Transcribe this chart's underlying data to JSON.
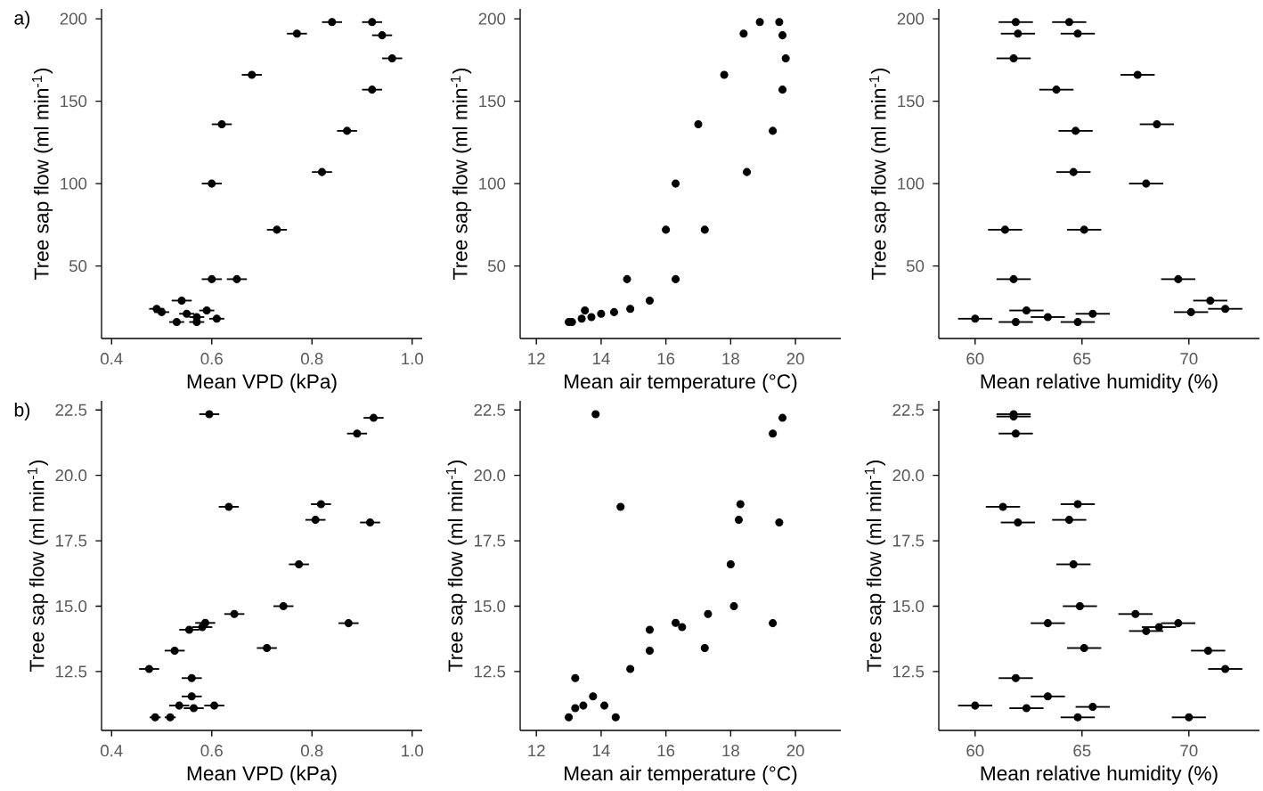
{
  "chart_data": [
    {
      "type": "scatter",
      "xlabel": "Mean VPD (kPa)",
      "ylabel": "Tree sap flow (ml min$^{-1}$)",
      "annotations": [
        "a)"
      ],
      "xlim": [
        0.38,
        1.02
      ],
      "ylim": [
        6,
        206
      ],
      "xticks": [
        {
          "value": 0.4,
          "label": "0.4"
        },
        {
          "value": 0.6,
          "label": "0.6"
        },
        {
          "value": 0.8,
          "label": "0.8"
        },
        {
          "value": 1,
          "label": "1.0"
        }
      ],
      "yticks": [
        50,
        100,
        150,
        200
      ],
      "series": [
        {
          "color": "#000000",
          "x": [
            0.84,
            0.92,
            0.77,
            0.94,
            0.96,
            0.68,
            0.92,
            0.62,
            0.87,
            0.82,
            0.6,
            0.73,
            0.6,
            0.65,
            0.54,
            0.49,
            0.5,
            0.53,
            0.55,
            0.57,
            0.59,
            0.57,
            0.61
          ],
          "values": [
            198,
            198,
            191,
            190,
            176,
            166,
            157,
            136,
            132,
            107,
            100,
            72,
            42,
            42,
            29,
            24,
            22,
            16,
            21,
            19,
            23,
            16,
            18
          ],
          "xerrors": [
            0.02,
            0.02,
            0.02,
            0.02,
            0.02,
            0.02,
            0.02,
            0.02,
            0.02,
            0.02,
            0.02,
            0.02,
            0.02,
            0.02,
            0.02,
            0.015,
            0.015,
            0.015,
            0.015,
            0.015,
            0.015,
            0.015,
            0.015
          ]
        }
      ]
    },
    {
      "type": "scatter",
      "xlabel": "Mean air temperature (°C)",
      "ylabel": "Tree sap flow (ml min$^{-1}$)",
      "xlim": [
        11.5,
        21.4
      ],
      "ylim": [
        6,
        206
      ],
      "xticks": [
        12,
        14,
        16,
        18,
        20
      ],
      "yticks": [
        50,
        100,
        150,
        200
      ],
      "series": [
        {
          "color": "#000000",
          "x": [
            18.9,
            19.5,
            18.4,
            19.6,
            19.7,
            17.8,
            19.6,
            17.0,
            19.3,
            18.5,
            16.3,
            16.0,
            17.2,
            14.8,
            16.3,
            15.5,
            14.9,
            14.4,
            14.0,
            13.7,
            13.5,
            13.4,
            13.0,
            13.1
          ],
          "values": [
            198,
            198,
            191,
            190,
            176,
            166,
            157,
            136,
            132,
            107,
            100,
            72,
            72,
            42,
            42,
            29,
            24,
            22,
            21,
            19,
            23,
            18,
            16,
            16
          ]
        }
      ]
    },
    {
      "type": "scatter",
      "xlabel": "Mean relative humidity (%)",
      "ylabel": "Tree sap flow (ml min$^{-1}$)",
      "xlim": [
        58.3,
        73.3
      ],
      "ylim": [
        6,
        206
      ],
      "xticks": [
        60,
        65,
        70
      ],
      "yticks": [
        50,
        100,
        150,
        200
      ],
      "series": [
        {
          "color": "#000000",
          "x": [
            61.9,
            64.4,
            62.0,
            64.8,
            61.8,
            67.6,
            63.8,
            68.5,
            64.7,
            64.6,
            68.0,
            61.4,
            65.1,
            61.8,
            69.5,
            71.0,
            71.7,
            70.1,
            62.4,
            63.4,
            65.5,
            60.0,
            61.9,
            64.8
          ],
          "values": [
            198,
            198,
            191,
            191,
            176,
            166,
            157,
            136,
            132,
            107,
            100,
            72,
            72,
            42,
            42,
            29,
            24,
            22,
            23,
            19,
            21,
            18,
            16,
            16
          ],
          "xerrors": [
            0.8,
            0.8,
            0.8,
            0.8,
            0.8,
            0.8,
            0.8,
            0.8,
            0.8,
            0.8,
            0.8,
            0.8,
            0.8,
            0.8,
            0.8,
            0.8,
            0.8,
            0.8,
            0.8,
            0.8,
            0.8,
            0.8,
            0.8,
            0.8
          ]
        }
      ]
    },
    {
      "type": "scatter",
      "xlabel": "Mean VPD (kPa)",
      "ylabel": "Tree sap flow (ml min$^{-1}$)",
      "annotations": [
        "b)"
      ],
      "xlim": [
        0.38,
        1.02
      ],
      "ylim": [
        10.25,
        22.85
      ],
      "xticks": [
        {
          "value": 0.4,
          "label": "0.4"
        },
        {
          "value": 0.6,
          "label": "0.6"
        },
        {
          "value": 0.8,
          "label": "0.8"
        },
        {
          "value": 1,
          "label": "1.0"
        }
      ],
      "yticks": [
        {
          "value": 12.5,
          "label": "12.5"
        },
        {
          "value": 15,
          "label": "15.0"
        },
        {
          "value": 17.5,
          "label": "17.5"
        },
        {
          "value": 20,
          "label": "20.0"
        },
        {
          "value": 22.5,
          "label": "22.5"
        }
      ],
      "series": [
        {
          "color": "#000000",
          "x": [
            0.595,
            0.923,
            0.89,
            0.634,
            0.818,
            0.807,
            0.916,
            0.774,
            0.743,
            0.645,
            0.873,
            0.587,
            0.581,
            0.555,
            0.526,
            0.71,
            0.475,
            0.56,
            0.56,
            0.535,
            0.564,
            0.605,
            0.487,
            0.517
          ],
          "values": [
            22.34,
            22.2,
            21.6,
            18.8,
            18.9,
            18.3,
            18.2,
            16.6,
            15.0,
            14.7,
            14.35,
            14.36,
            14.2,
            14.1,
            13.3,
            13.4,
            12.6,
            12.25,
            11.55,
            11.2,
            11.1,
            11.2,
            10.75,
            10.75
          ],
          "xerrors": [
            0.02,
            0.02,
            0.02,
            0.02,
            0.02,
            0.02,
            0.02,
            0.02,
            0.02,
            0.02,
            0.02,
            0.02,
            0.02,
            0.02,
            0.02,
            0.02,
            0.02,
            0.02,
            0.02,
            0.02,
            0.02,
            0.02,
            0.011,
            0.011
          ]
        }
      ]
    },
    {
      "type": "scatter",
      "xlabel": "Mean air temperature (°C)",
      "ylabel": "Tree sap flow (ml min$^{-1}$)",
      "xlim": [
        11.5,
        21.4
      ],
      "ylim": [
        10.25,
        22.85
      ],
      "xticks": [
        12,
        14,
        16,
        18,
        20
      ],
      "yticks": [
        {
          "value": 12.5,
          "label": "12.5"
        },
        {
          "value": 15,
          "label": "15.0"
        },
        {
          "value": 17.5,
          "label": "17.5"
        },
        {
          "value": 20,
          "label": "20.0"
        },
        {
          "value": 22.5,
          "label": "22.5"
        }
      ],
      "series": [
        {
          "color": "#000000",
          "x": [
            13.83,
            19.6,
            19.3,
            14.6,
            18.3,
            18.25,
            19.5,
            18.0,
            18.1,
            17.3,
            19.3,
            16.3,
            16.5,
            15.5,
            15.5,
            17.2,
            14.9,
            13.2,
            13.75,
            13.45,
            13.2,
            14.1,
            13.0,
            14.45
          ],
          "values": [
            22.34,
            22.2,
            21.6,
            18.8,
            18.9,
            18.3,
            18.2,
            16.6,
            15.0,
            14.7,
            14.35,
            14.36,
            14.2,
            14.1,
            13.3,
            13.4,
            12.6,
            12.25,
            11.55,
            11.2,
            11.1,
            11.2,
            10.75,
            10.75
          ]
        }
      ]
    },
    {
      "type": "scatter",
      "xlabel": "Mean relative humidity (%)",
      "ylabel": "Tree sap flow (ml min$^{-1}$)",
      "xlim": [
        58.3,
        73.3
      ],
      "ylim": [
        10.25,
        22.85
      ],
      "xticks": [
        60,
        65,
        70
      ],
      "yticks": [
        {
          "value": 12.5,
          "label": "12.5"
        },
        {
          "value": 15,
          "label": "15.0"
        },
        {
          "value": 17.5,
          "label": "17.5"
        },
        {
          "value": 20,
          "label": "20.0"
        },
        {
          "value": 22.5,
          "label": "22.5"
        }
      ],
      "series": [
        {
          "color": "#000000",
          "x": [
            61.8,
            61.8,
            61.9,
            61.3,
            64.8,
            64.4,
            62.0,
            64.6,
            64.9,
            63.4,
            67.5,
            68.0,
            68.6,
            69.5,
            65.1,
            70.9,
            71.7,
            61.9,
            63.4,
            60.0,
            62.4,
            65.5,
            64.8,
            70.0
          ],
          "values": [
            22.34,
            22.25,
            21.6,
            18.8,
            18.9,
            18.3,
            18.2,
            16.6,
            15.0,
            14.35,
            14.7,
            14.05,
            14.2,
            14.35,
            13.4,
            13.3,
            12.6,
            12.25,
            11.55,
            11.2,
            11.1,
            11.15,
            10.75,
            10.75
          ],
          "xerrors": [
            0.8,
            0.8,
            0.8,
            0.8,
            0.8,
            0.8,
            0.8,
            0.8,
            0.8,
            0.8,
            0.8,
            0.8,
            0.8,
            0.8,
            0.8,
            0.8,
            0.8,
            0.8,
            0.8,
            0.8,
            0.8,
            0.8,
            0.8,
            0.8
          ]
        }
      ]
    }
  ]
}
